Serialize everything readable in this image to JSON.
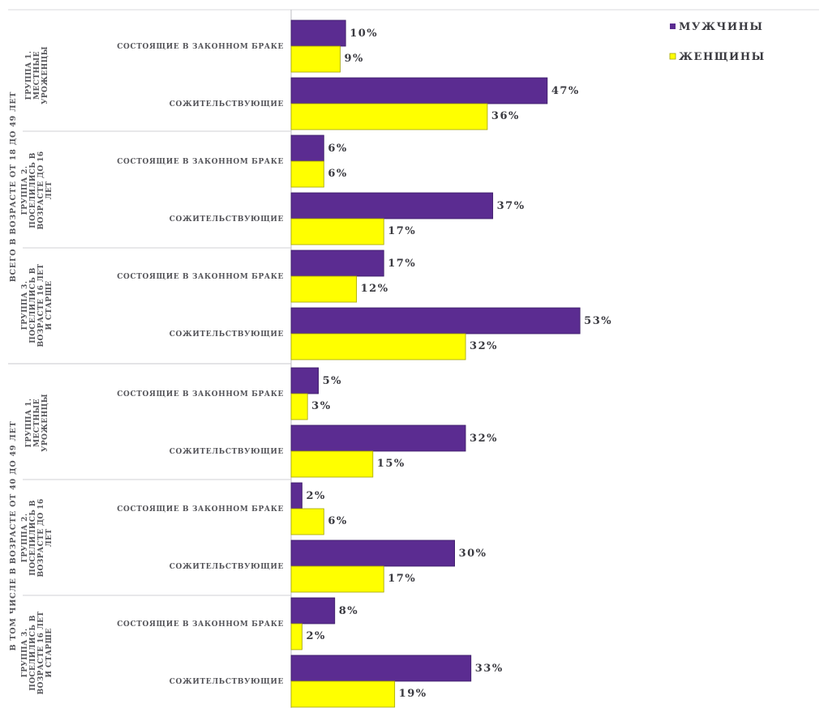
{
  "chart_data": {
    "type": "bar",
    "orientation": "horizontal",
    "legend_position": "top-right",
    "xlim": [
      0,
      60
    ],
    "grid": false,
    "colors": {
      "men": "#5b2c91",
      "women": "#ffff00"
    },
    "legend": [
      "МУЖЧИНЫ",
      "ЖЕНЩИНЫ"
    ],
    "outer_groups": [
      {
        "label": "ВСЕГО В ВОЗРАСТЕ ОТ 18 ДО 49 ЛЕТ",
        "subgroups": [
          {
            "label_lines": [
              "ГРУППА 1.",
              "МЕСТНЫЕ",
              "УРОЖЕНЦЫ"
            ],
            "categories": [
              {
                "label": "СОСТОЯЩИЕ В ЗАКОННОМ БРАКЕ",
                "men": 10,
                "women": 9,
                "men_label": "10%",
                "women_label": "9%"
              },
              {
                "label": "СОЖИТЕЛЬСТВУЮЩИЕ",
                "men": 47,
                "women": 36,
                "men_label": "47%",
                "women_label": "36%"
              }
            ]
          },
          {
            "label_lines": [
              "ГРУППА 2.",
              "ПОСЕЛИЛИСЬ В",
              "ВОЗРАСТЕ ДО 16",
              "ЛЕТ"
            ],
            "categories": [
              {
                "label": "СОСТОЯЩИЕ В ЗАКОННОМ БРАКЕ",
                "men": 6,
                "women": 6,
                "men_label": "6%",
                "women_label": "6%"
              },
              {
                "label": "СОЖИТЕЛЬСТВУЮЩИЕ",
                "men": 37,
                "women": 17,
                "men_label": "37%",
                "women_label": "17%"
              }
            ]
          },
          {
            "label_lines": [
              "ГРУППА 3.",
              "ПОСЕЛИЛИСЬ В",
              "ВОЗРАСТЕ 16 ЛЕТ",
              "И СТАРШЕ"
            ],
            "categories": [
              {
                "label": "СОСТОЯЩИЕ В ЗАКОННОМ БРАКЕ",
                "men": 17,
                "women": 12,
                "men_label": "17%",
                "women_label": "12%"
              },
              {
                "label": "СОЖИТЕЛЬСТВУЮЩИЕ",
                "men": 53,
                "women": 32,
                "men_label": "53%",
                "women_label": "32%"
              }
            ]
          }
        ]
      },
      {
        "label": "В ТОМ ЧИСЛЕ В ВОЗРАСТЕ ОТ 40 ДО 49 ЛЕТ",
        "subgroups": [
          {
            "label_lines": [
              "ГРУППА 1.",
              "МЕСТНЫЕ",
              "УРОЖЕНЦЫ"
            ],
            "categories": [
              {
                "label": "СОСТОЯЩИЕ В ЗАКОННОМ БРАКЕ",
                "men": 5,
                "women": 3,
                "men_label": "5%",
                "women_label": "3%"
              },
              {
                "label": "СОЖИТЕЛЬСТВУЮЩИЕ",
                "men": 32,
                "women": 15,
                "men_label": "32%",
                "women_label": "15%"
              }
            ]
          },
          {
            "label_lines": [
              "ГРУППА 2.",
              "ПОСЕЛИЛИСЬ В",
              "ВОЗРАСТЕ ДО 16",
              "ЛЕТ"
            ],
            "categories": [
              {
                "label": "СОСТОЯЩИЕ В ЗАКОННОМ БРАКЕ",
                "men": 2,
                "women": 6,
                "men_label": "2%",
                "women_label": "6%"
              },
              {
                "label": "СОЖИТЕЛЬСТВУЮЩИЕ",
                "men": 30,
                "women": 17,
                "men_label": "30%",
                "women_label": "17%"
              }
            ]
          },
          {
            "label_lines": [
              "ГРУППА 3.",
              "ПОСЕЛИЛИСЬ В",
              "ВОЗРАСТЕ 16 ЛЕТ",
              "И СТАРШЕ"
            ],
            "categories": [
              {
                "label": "СОСТОЯЩИЕ В ЗАКОННОМ БРАКЕ",
                "men": 8,
                "women": 2,
                "men_label": "8%",
                "women_label": "2%"
              },
              {
                "label": "СОЖИТЕЛЬСТВУЮЩИЕ",
                "men": 33,
                "women": 19,
                "men_label": "33%",
                "women_label": "19%"
              }
            ]
          }
        ]
      }
    ]
  }
}
